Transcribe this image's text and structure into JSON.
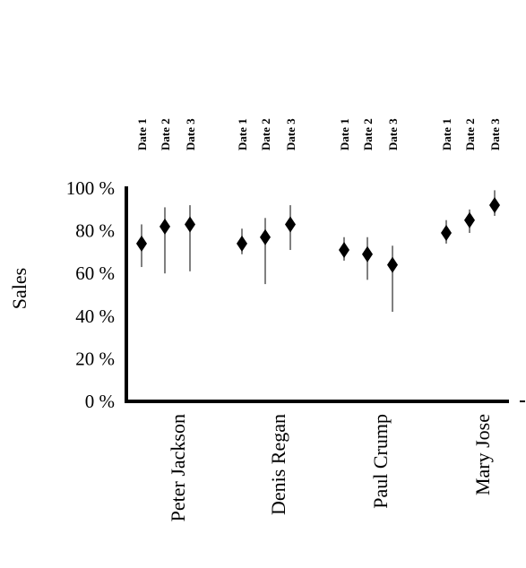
{
  "chart_data": {
    "type": "scatter",
    "title": "",
    "ylabel": "Sales",
    "xlabel": "",
    "ylim": [
      0,
      100
    ],
    "yticks": [
      "0 %",
      "20 %",
      "40 %",
      "60 %",
      "80 %",
      "100 %"
    ],
    "ytick_values": [
      0,
      20,
      40,
      60,
      80,
      100
    ],
    "categories": [
      "Peter Jackson",
      "Denis Regan",
      "Paul Crump",
      "Mary Jose"
    ],
    "sub_categories": [
      "Date 1",
      "Date 2",
      "Date 3"
    ],
    "groups": [
      {
        "name": "Peter Jackson",
        "points": [
          {
            "label": "Date 1",
            "value": 74,
            "low": 63,
            "high": 83
          },
          {
            "label": "Date 2",
            "value": 82,
            "low": 60,
            "high": 91
          },
          {
            "label": "Date 3",
            "value": 83,
            "low": 61,
            "high": 92
          }
        ]
      },
      {
        "name": "Denis Regan",
        "points": [
          {
            "label": "Date 1",
            "value": 74,
            "low": 69,
            "high": 81
          },
          {
            "label": "Date 2",
            "value": 77,
            "low": 55,
            "high": 86
          },
          {
            "label": "Date 3",
            "value": 83,
            "low": 71,
            "high": 92
          }
        ]
      },
      {
        "name": "Paul Crump",
        "points": [
          {
            "label": "Date 1",
            "value": 71,
            "low": 66,
            "high": 77
          },
          {
            "label": "Date 2",
            "value": 69,
            "low": 57,
            "high": 77
          },
          {
            "label": "Date 3",
            "value": 64,
            "low": 42,
            "high": 73
          }
        ]
      },
      {
        "name": "Mary Jose",
        "points": [
          {
            "label": "Date 1",
            "value": 79,
            "low": 74,
            "high": 85
          },
          {
            "label": "Date 2",
            "value": 85,
            "low": 79,
            "high": 90
          },
          {
            "label": "Date 3",
            "value": 92,
            "low": 87,
            "high": 99
          }
        ]
      }
    ],
    "grid": false,
    "legend": "none"
  }
}
